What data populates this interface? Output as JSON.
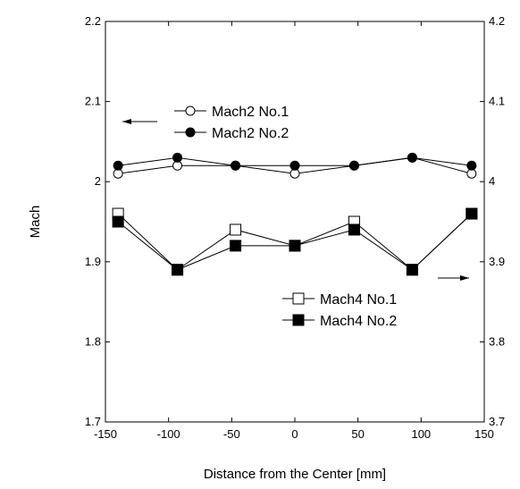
{
  "chart_data": {
    "type": "line",
    "title": "",
    "xlabel": "Distance from the Center [mm]",
    "ylabel": "Mach",
    "y2label": "",
    "xlim": [
      -150,
      150
    ],
    "ylim": [
      1.7,
      2.2
    ],
    "y2lim": [
      3.7,
      4.2
    ],
    "xticks": [
      "-150",
      "-100",
      "-50",
      "0",
      "50",
      "100",
      "150"
    ],
    "yticks": [
      "1.7",
      "1.8",
      "1.9",
      "2",
      "2.1",
      "2.2"
    ],
    "y2ticks": [
      "3.7",
      "3.8",
      "3.9",
      "4",
      "4.1",
      "4.2"
    ],
    "grid": false,
    "legend_groups": [
      {
        "position": "upper-left",
        "arrow": "left",
        "series": [
          0,
          1
        ]
      },
      {
        "position": "lower-right",
        "arrow": "right",
        "series": [
          2,
          3
        ]
      }
    ],
    "series": [
      {
        "name": "Mach2 No.1",
        "axis": "left",
        "marker": "circle-open",
        "color": "#000000",
        "x": [
          -140,
          -93,
          -47,
          0,
          47,
          93,
          140
        ],
        "y": [
          2.01,
          2.02,
          2.02,
          2.01,
          2.02,
          2.03,
          2.01
        ]
      },
      {
        "name": "Mach2 No.2",
        "axis": "left",
        "marker": "circle-filled",
        "color": "#000000",
        "x": [
          -140,
          -93,
          -47,
          0,
          47,
          93,
          140
        ],
        "y": [
          2.02,
          2.03,
          2.02,
          2.02,
          2.02,
          2.03,
          2.02
        ]
      },
      {
        "name": "Mach4 No.1",
        "axis": "right",
        "marker": "square-open",
        "color": "#000000",
        "x": [
          -140,
          -93,
          -47,
          0,
          47,
          93,
          140
        ],
        "y": [
          3.96,
          3.89,
          3.94,
          3.92,
          3.95,
          3.89,
          3.96
        ]
      },
      {
        "name": "Mach4 No.2",
        "axis": "right",
        "marker": "square-filled",
        "color": "#000000",
        "x": [
          -140,
          -93,
          -47,
          0,
          47,
          93,
          140
        ],
        "y": [
          3.95,
          3.89,
          3.92,
          3.92,
          3.94,
          3.89,
          3.96
        ]
      }
    ]
  }
}
